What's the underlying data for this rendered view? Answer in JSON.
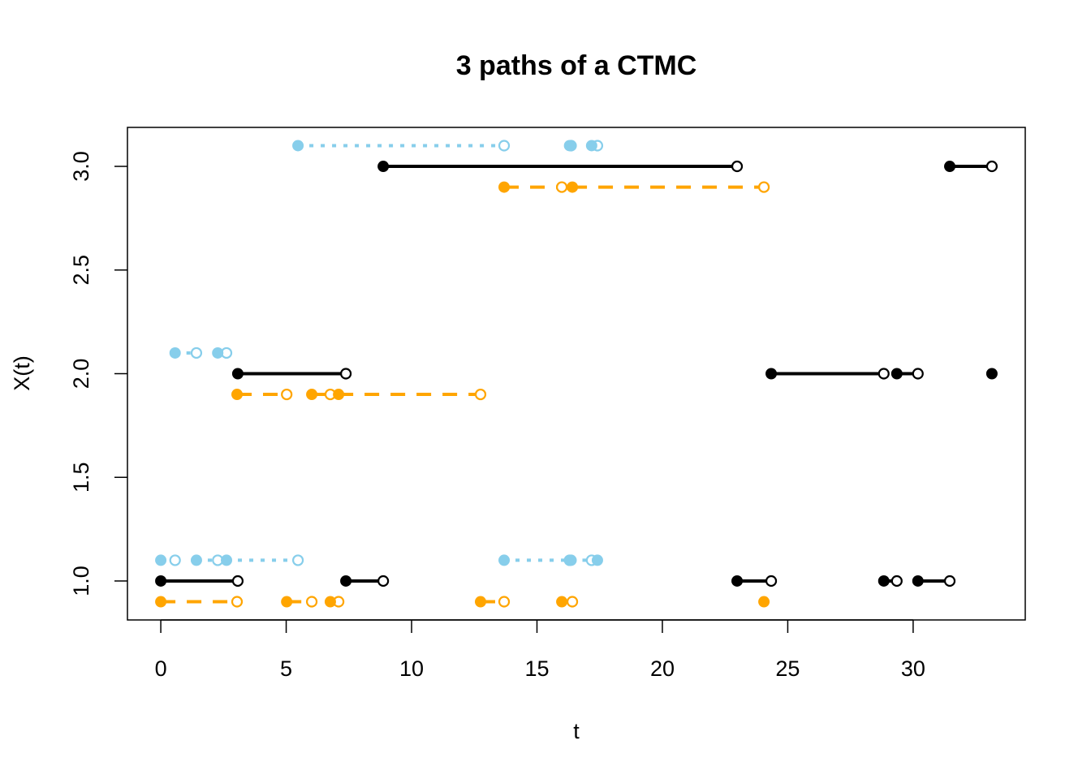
{
  "chart_data": {
    "type": "line",
    "subtype": "step paths with filled start / open end points",
    "title": "3  paths of a CTMC",
    "xlabel": "t",
    "ylabel": "X(t)",
    "xlim": [
      -1.33,
      34.47
    ],
    "ylim": [
      0.812,
      3.188
    ],
    "xticks": [
      0,
      5,
      10,
      15,
      20,
      25,
      30
    ],
    "xtick_labels": [
      "0",
      "5",
      "10",
      "15",
      "20",
      "25",
      "30"
    ],
    "yticks": [
      1.0,
      1.5,
      2.0,
      2.5,
      3.0
    ],
    "ytick_labels": [
      "1.0",
      "1.5",
      "2.0",
      "2.5",
      "3.0"
    ],
    "grid": false,
    "legend": "none",
    "series": [
      {
        "color": "#000000",
        "line_style": "solid",
        "y_offset": 0.0,
        "jump_times": [
          0,
          3.07,
          7.38,
          8.87,
          22.98,
          24.34,
          28.83,
          29.35,
          30.19,
          31.46,
          33.14
        ],
        "states": [
          1,
          2,
          1,
          3,
          1,
          2,
          1,
          2,
          1,
          3,
          2
        ]
      },
      {
        "color": "#FFA500",
        "line_style": "dashed",
        "y_offset": -0.1,
        "jump_times": [
          0,
          3.04,
          5.02,
          6.02,
          6.76,
          7.09,
          12.75,
          13.69,
          15.99,
          16.41,
          24.05
        ],
        "states": [
          1,
          2,
          1,
          2,
          1,
          2,
          1,
          3,
          1,
          3,
          1
        ]
      },
      {
        "color": "#87CEEB",
        "line_style": "dotted",
        "y_offset": 0.1,
        "jump_times": [
          0,
          0.57,
          1.42,
          2.27,
          2.62,
          5.47,
          13.69,
          16.3,
          16.36,
          17.18,
          17.41
        ],
        "states": [
          1,
          2,
          1,
          2,
          1,
          3,
          1,
          3,
          1,
          3,
          1
        ]
      }
    ]
  }
}
